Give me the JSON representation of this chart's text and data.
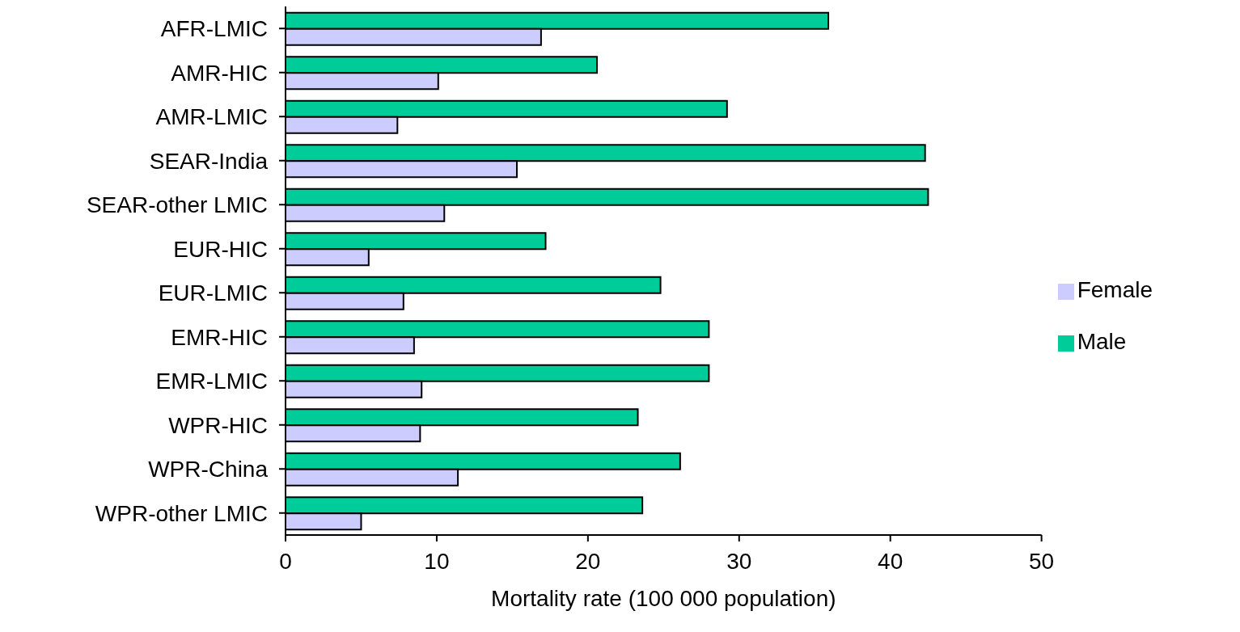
{
  "chart_data": {
    "type": "bar",
    "orientation": "horizontal",
    "xlabel": "Mortality rate (100 000 population)",
    "categories": [
      "AFR-LMIC",
      "AMR-HIC",
      "AMR-LMIC",
      "SEAR-India",
      "SEAR-other LMIC",
      "EUR-HIC",
      "EUR-LMIC",
      "EMR-HIC",
      "EMR-LMIC",
      "WPR-HIC",
      "WPR-China",
      "WPR-other LMIC"
    ],
    "series": [
      {
        "name": "Male",
        "color": "#00cc99",
        "values": [
          35.9,
          20.6,
          29.2,
          42.3,
          42.5,
          17.2,
          24.8,
          28.0,
          28.0,
          23.3,
          26.1,
          23.6
        ]
      },
      {
        "name": "Female",
        "color": "#ccccff",
        "values": [
          16.9,
          10.1,
          7.4,
          15.3,
          10.5,
          5.5,
          7.8,
          8.5,
          9.0,
          8.9,
          11.4,
          5.0
        ]
      }
    ],
    "xlim": [
      0,
      50
    ],
    "xticks": [
      0,
      10,
      20,
      30,
      40,
      50
    ],
    "legend": "right",
    "grid": false
  }
}
